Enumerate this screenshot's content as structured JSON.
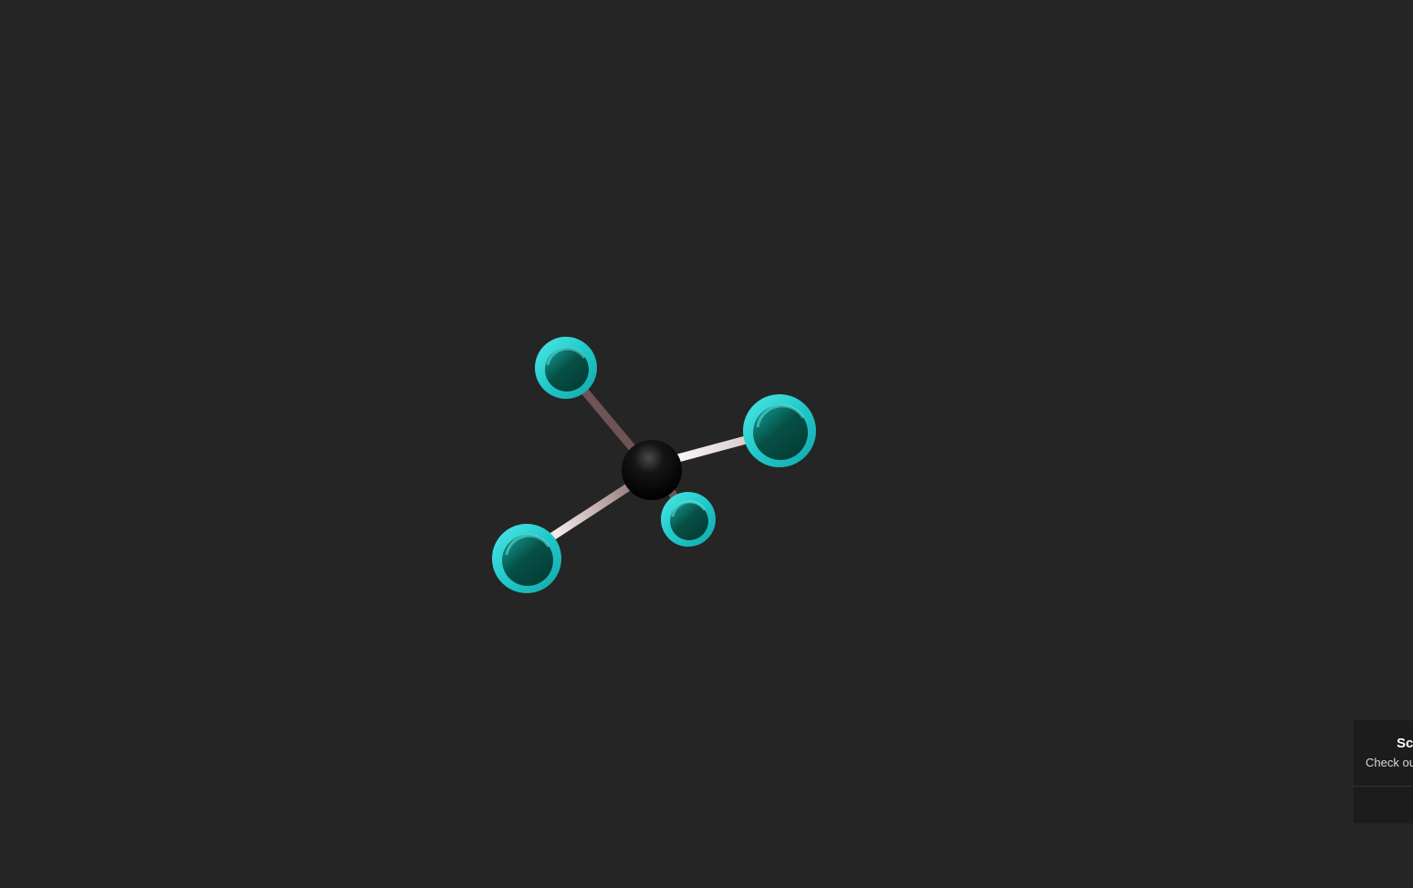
{
  "viewer": {
    "background_color": "#252525",
    "atom_colors": {
      "central": "#0a0a0a",
      "terminal": "#21c9c9",
      "terminal_shade": "#064f45"
    },
    "bond_colors": {
      "light": "#f0e6e6",
      "dark": "#6e5454"
    }
  },
  "toast": {
    "title": "Sc",
    "message": "Check ou"
  }
}
